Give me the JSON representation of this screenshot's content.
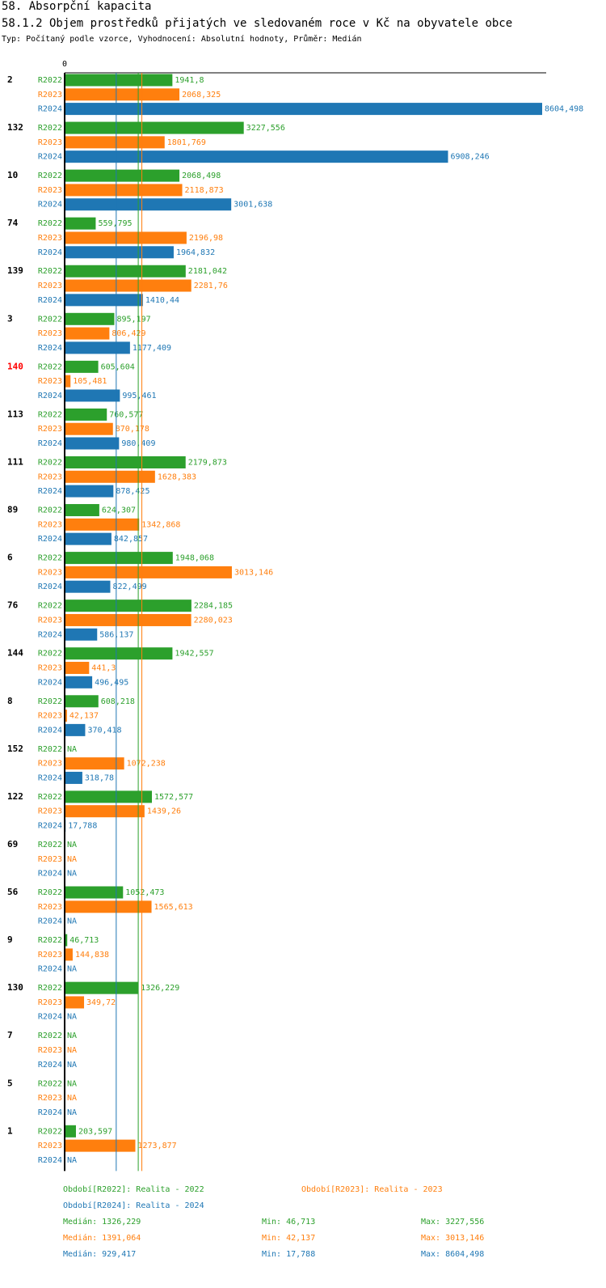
{
  "header": {
    "title": "58. Absorpční kapacita",
    "subtitle": "58.1.2 Objem prostředků přijatých ve sledovaném roce v Kč na obyvatele obce",
    "info": "Typ: Počítaný podle vzorce, Vyhodnocení: Absolutní hodnoty, Průměr: Medián"
  },
  "colors": {
    "R2022": "#2ca02c",
    "R2023": "#ff7f0e",
    "R2024": "#1f77b4",
    "highlight": "#ff0000",
    "axis": "#000000"
  },
  "chart_data": {
    "type": "bar",
    "orientation": "horizontal",
    "axis_zero_label": "0",
    "xlim": [
      0,
      8604.498
    ],
    "series_names": [
      "R2022",
      "R2023",
      "R2024"
    ],
    "highlighted_group": "140",
    "groups": [
      {
        "id": "2",
        "values": [
          1941.8,
          2068.325,
          8604.498
        ],
        "labels": [
          "1941,8",
          "2068,325",
          "8604,498"
        ]
      },
      {
        "id": "132",
        "values": [
          3227.556,
          1801.769,
          6908.246
        ],
        "labels": [
          "3227,556",
          "1801,769",
          "6908,246"
        ]
      },
      {
        "id": "10",
        "values": [
          2068.498,
          2118.873,
          3001.638
        ],
        "labels": [
          "2068,498",
          "2118,873",
          "3001,638"
        ]
      },
      {
        "id": "74",
        "values": [
          559.795,
          2196.98,
          1964.832
        ],
        "labels": [
          "559,795",
          "2196,98",
          "1964,832"
        ]
      },
      {
        "id": "139",
        "values": [
          2181.042,
          2281.76,
          1410.44
        ],
        "labels": [
          "2181,042",
          "2281,76",
          "1410,44"
        ]
      },
      {
        "id": "3",
        "values": [
          895.197,
          806.429,
          1177.409
        ],
        "labels": [
          "895,197",
          "806,429",
          "1177,409"
        ]
      },
      {
        "id": "140",
        "values": [
          605.604,
          105.481,
          995.461
        ],
        "labels": [
          "605,604",
          "105,481",
          "995,461"
        ]
      },
      {
        "id": "113",
        "values": [
          760.577,
          870.178,
          980.409
        ],
        "labels": [
          "760,577",
          "870,178",
          "980,409"
        ]
      },
      {
        "id": "111",
        "values": [
          2179.873,
          1628.383,
          878.425
        ],
        "labels": [
          "2179,873",
          "1628,383",
          "878,425"
        ]
      },
      {
        "id": "89",
        "values": [
          624.307,
          1342.868,
          842.857
        ],
        "labels": [
          "624,307",
          "1342,868",
          "842,857"
        ]
      },
      {
        "id": "6",
        "values": [
          1948.068,
          3013.146,
          822.499
        ],
        "labels": [
          "1948,068",
          "3013,146",
          "822,499"
        ]
      },
      {
        "id": "76",
        "values": [
          2284.185,
          2280.023,
          586.137
        ],
        "labels": [
          "2284,185",
          "2280,023",
          "586,137"
        ]
      },
      {
        "id": "144",
        "values": [
          1942.557,
          441.3,
          496.495
        ],
        "labels": [
          "1942,557",
          "441,3",
          "496,495"
        ]
      },
      {
        "id": "8",
        "values": [
          608.218,
          42.137,
          370.418
        ],
        "labels": [
          "608,218",
          "42,137",
          "370,418"
        ]
      },
      {
        "id": "152",
        "values": [
          null,
          1072.238,
          318.78
        ],
        "labels": [
          "NA",
          "1072,238",
          "318,78"
        ]
      },
      {
        "id": "122",
        "values": [
          1572.577,
          1439.26,
          17.788
        ],
        "labels": [
          "1572,577",
          "1439,26",
          "17,788"
        ]
      },
      {
        "id": "69",
        "values": [
          null,
          null,
          null
        ],
        "labels": [
          "NA",
          "NA",
          "NA"
        ]
      },
      {
        "id": "56",
        "values": [
          1052.473,
          1565.613,
          null
        ],
        "labels": [
          "1052,473",
          "1565,613",
          "NA"
        ]
      },
      {
        "id": "9",
        "values": [
          46.713,
          144.838,
          null
        ],
        "labels": [
          "46,713",
          "144,838",
          "NA"
        ]
      },
      {
        "id": "130",
        "values": [
          1326.229,
          349.72,
          null
        ],
        "labels": [
          "1326,229",
          "349,72",
          "NA"
        ]
      },
      {
        "id": "7",
        "values": [
          null,
          null,
          null
        ],
        "labels": [
          "NA",
          "NA",
          "NA"
        ]
      },
      {
        "id": "5",
        "values": [
          null,
          null,
          null
        ],
        "labels": [
          "NA",
          "NA",
          "NA"
        ]
      },
      {
        "id": "1",
        "values": [
          203.597,
          1273.877,
          null
        ],
        "labels": [
          "203,597",
          "1273,877",
          "NA"
        ]
      }
    ],
    "median_lines": [
      {
        "series": "R2022",
        "value": 1326.229
      },
      {
        "series": "R2023",
        "value": 1391.064
      },
      {
        "series": "R2024",
        "value": 929.417
      }
    ]
  },
  "footer": {
    "legend_2022": "Období[R2022]: Realita - 2022",
    "legend_2023": "Období[R2023]: Realita - 2023",
    "legend_2024": "Období[R2024]: Realita - 2024",
    "stats_2022": {
      "median": "Medián: 1326,229",
      "min": "Min: 46,713",
      "max": "Max: 3227,556"
    },
    "stats_2023": {
      "median": "Medián: 1391,064",
      "min": "Min: 42,137",
      "max": "Max: 3013,146"
    },
    "stats_2024": {
      "median": "Medián: 929,417",
      "min": "Min: 17,788",
      "max": "Max: 8604,498"
    }
  }
}
